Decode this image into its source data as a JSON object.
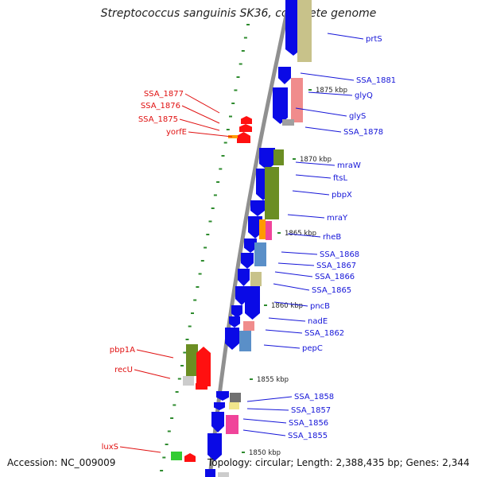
{
  "title": "Streptococcus sanguinis SK36, complete genome",
  "footer": {
    "accession": "Accession: NC_009009",
    "topology": "Topology: circular; Length: 2,388,435 bp; Genes: 2,344"
  },
  "colors": {
    "cds_blue": "#0a0ae6",
    "label_blue": "#1515d8",
    "label_red": "#e01010",
    "backbone": "#909090",
    "olive": "#6b8e23",
    "khaki": "#c8c28a",
    "salmon": "#f08c8c",
    "steel": "#5a8fc8",
    "pink": "#f0449a",
    "red": "#ff1010",
    "orange": "#ff9a00",
    "green": "#33cc33",
    "gray": "#707070",
    "yellow": "#f0e68c",
    "gc_tick": "#2e8b2e"
  },
  "scale_labels": [
    "1875 kbp",
    "1870 kbp",
    "1865 kbp",
    "1860 kbp",
    "1855 kbp",
    "1850 kbp"
  ],
  "gene_labels": {
    "right": [
      "prtS",
      "SSA_1881",
      "glyQ",
      "glyS",
      "SSA_1878",
      "mraW",
      "ftsL",
      "pbpX",
      "mraY",
      "rheB",
      "SSA_1868",
      "SSA_1867",
      "SSA_1866",
      "SSA_1865",
      "pncB",
      "nadE",
      "SSA_1862",
      "pepC",
      "SSA_1858",
      "SSA_1857",
      "SSA_1856",
      "SSA_1855"
    ],
    "left": [
      "SSA_1877",
      "SSA_1876",
      "SSA_1875",
      "yorfE",
      "pbp1A",
      "recU",
      "luxS"
    ]
  }
}
